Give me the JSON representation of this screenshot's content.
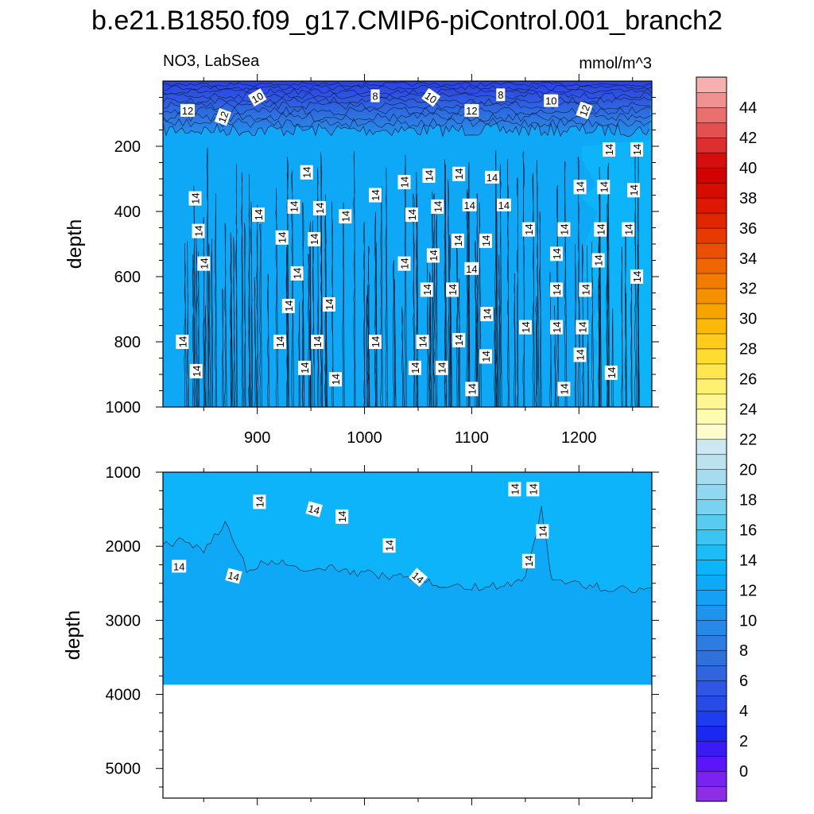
{
  "chart_data": {
    "type": "heatmap",
    "subtype": "filled-contour",
    "title": "b.e21.B1850.f09_g17.CMIP6-piControl.001_branch2",
    "variable_label": "NO3, LabSea",
    "units_label": "mmol/m^3",
    "panels": [
      {
        "name": "upper",
        "xlabel": "",
        "ylabel": "depth",
        "xlim": [
          812,
          1268
        ],
        "ylim": [
          0,
          1000
        ],
        "y_inverted": true,
        "x_ticks": [
          900,
          1000,
          1100,
          1200
        ],
        "x_tick_labels": [
          "900",
          "1000",
          "1100",
          "1200"
        ],
        "y_ticks": [
          200,
          400,
          600,
          800,
          1000
        ],
        "y_tick_labels": [
          "200",
          "400",
          "600",
          "800",
          "1000"
        ],
        "contour_labels": [
          {
            "text": "12",
            "x": 835,
            "depth": 90,
            "rot": 0
          },
          {
            "text": "12",
            "x": 868,
            "depth": 110,
            "rot": -70
          },
          {
            "text": "10",
            "x": 900,
            "depth": 50,
            "rot": -30
          },
          {
            "text": "8",
            "x": 1010,
            "depth": 45,
            "rot": 0
          },
          {
            "text": "10",
            "x": 1062,
            "depth": 50,
            "rot": 35
          },
          {
            "text": "12",
            "x": 1100,
            "depth": 90,
            "rot": 0
          },
          {
            "text": "8",
            "x": 1127,
            "depth": 42,
            "rot": 0
          },
          {
            "text": "10",
            "x": 1174,
            "depth": 60,
            "rot": 0
          },
          {
            "text": "12",
            "x": 1205,
            "depth": 90,
            "rot": -70
          },
          {
            "text": "14",
            "x": 842,
            "depth": 360,
            "rot": -90
          },
          {
            "text": "14",
            "x": 845,
            "depth": 460,
            "rot": -90
          },
          {
            "text": "14",
            "x": 850,
            "depth": 560,
            "rot": -90
          },
          {
            "text": "14",
            "x": 830,
            "depth": 800,
            "rot": -90
          },
          {
            "text": "14",
            "x": 843,
            "depth": 890,
            "rot": -90
          },
          {
            "text": "14",
            "x": 901,
            "depth": 410,
            "rot": -90
          },
          {
            "text": "14",
            "x": 923,
            "depth": 480,
            "rot": -90
          },
          {
            "text": "14",
            "x": 934,
            "depth": 385,
            "rot": -90
          },
          {
            "text": "14",
            "x": 946,
            "depth": 280,
            "rot": -90
          },
          {
            "text": "14",
            "x": 937,
            "depth": 590,
            "rot": -90
          },
          {
            "text": "14",
            "x": 929,
            "depth": 690,
            "rot": -90
          },
          {
            "text": "14",
            "x": 921,
            "depth": 800,
            "rot": -90
          },
          {
            "text": "14",
            "x": 944,
            "depth": 880,
            "rot": -90
          },
          {
            "text": "14",
            "x": 953,
            "depth": 485,
            "rot": -90
          },
          {
            "text": "14",
            "x": 958,
            "depth": 390,
            "rot": -90
          },
          {
            "text": "14",
            "x": 967,
            "depth": 685,
            "rot": -90
          },
          {
            "text": "14",
            "x": 956,
            "depth": 800,
            "rot": -90
          },
          {
            "text": "14",
            "x": 982,
            "depth": 415,
            "rot": -90
          },
          {
            "text": "14",
            "x": 973,
            "depth": 915,
            "rot": -90
          },
          {
            "text": "14",
            "x": 1010,
            "depth": 350,
            "rot": -90
          },
          {
            "text": "14",
            "x": 1010,
            "depth": 800,
            "rot": -90
          },
          {
            "text": "14",
            "x": 1037,
            "depth": 310,
            "rot": -90
          },
          {
            "text": "14",
            "x": 1037,
            "depth": 560,
            "rot": -90
          },
          {
            "text": "14",
            "x": 1044,
            "depth": 410,
            "rot": -90
          },
          {
            "text": "14",
            "x": 1060,
            "depth": 290,
            "rot": -90
          },
          {
            "text": "14",
            "x": 1054,
            "depth": 800,
            "rot": -90
          },
          {
            "text": "14",
            "x": 1058,
            "depth": 640,
            "rot": -90
          },
          {
            "text": "14",
            "x": 1047,
            "depth": 880,
            "rot": -90
          },
          {
            "text": "14",
            "x": 1064,
            "depth": 535,
            "rot": -90
          },
          {
            "text": "14",
            "x": 1068,
            "depth": 385,
            "rot": -90
          },
          {
            "text": "14",
            "x": 1072,
            "depth": 880,
            "rot": -90
          },
          {
            "text": "14",
            "x": 1082,
            "depth": 640,
            "rot": -90
          },
          {
            "text": "14",
            "x": 1087,
            "depth": 490,
            "rot": -90
          },
          {
            "text": "14",
            "x": 1088,
            "depth": 795,
            "rot": -90
          },
          {
            "text": "14",
            "x": 1088,
            "depth": 285,
            "rot": -90
          },
          {
            "text": "14",
            "x": 1098,
            "depth": 380,
            "rot": 0
          },
          {
            "text": "14",
            "x": 1100,
            "depth": 575,
            "rot": 0
          },
          {
            "text": "14",
            "x": 1100,
            "depth": 945,
            "rot": -90
          },
          {
            "text": "14",
            "x": 1113,
            "depth": 490,
            "rot": -90
          },
          {
            "text": "14",
            "x": 1114,
            "depth": 715,
            "rot": -90
          },
          {
            "text": "14",
            "x": 1113,
            "depth": 845,
            "rot": -90
          },
          {
            "text": "14",
            "x": 1119,
            "depth": 295,
            "rot": 0
          },
          {
            "text": "14",
            "x": 1130,
            "depth": 380,
            "rot": 0
          },
          {
            "text": "14",
            "x": 1153,
            "depth": 455,
            "rot": -90
          },
          {
            "text": "14",
            "x": 1150,
            "depth": 755,
            "rot": -90
          },
          {
            "text": "14",
            "x": 1179,
            "depth": 530,
            "rot": -90
          },
          {
            "text": "14",
            "x": 1179,
            "depth": 640,
            "rot": -90
          },
          {
            "text": "14",
            "x": 1179,
            "depth": 755,
            "rot": -90
          },
          {
            "text": "14",
            "x": 1186,
            "depth": 455,
            "rot": -90
          },
          {
            "text": "14",
            "x": 1186,
            "depth": 945,
            "rot": -90
          },
          {
            "text": "14",
            "x": 1201,
            "depth": 325,
            "rot": -90
          },
          {
            "text": "14",
            "x": 1201,
            "depth": 840,
            "rot": -90
          },
          {
            "text": "14",
            "x": 1203,
            "depth": 755,
            "rot": -90
          },
          {
            "text": "14",
            "x": 1206,
            "depth": 640,
            "rot": -90
          },
          {
            "text": "14",
            "x": 1218,
            "depth": 550,
            "rot": -90
          },
          {
            "text": "14",
            "x": 1220,
            "depth": 455,
            "rot": -90
          },
          {
            "text": "14",
            "x": 1223,
            "depth": 325,
            "rot": -90
          },
          {
            "text": "14",
            "x": 1230,
            "depth": 895,
            "rot": -90
          },
          {
            "text": "14",
            "x": 1228,
            "depth": 210,
            "rot": -90
          },
          {
            "text": "14",
            "x": 1246,
            "depth": 455,
            "rot": -90
          },
          {
            "text": "14",
            "x": 1251,
            "depth": 335,
            "rot": -90
          },
          {
            "text": "14",
            "x": 1254,
            "depth": 210,
            "rot": -90
          },
          {
            "text": "14",
            "x": 1254,
            "depth": 600,
            "rot": -90
          }
        ]
      },
      {
        "name": "lower",
        "xlabel": "",
        "ylabel": "depth",
        "xlim": [
          812,
          1268
        ],
        "ylim": [
          1000,
          5400
        ],
        "y_inverted": true,
        "valid_data_max_depth": 3870,
        "x_ticks": [
          900,
          1000,
          1100,
          1200
        ],
        "x_tick_labels": [],
        "y_ticks": [
          1000,
          2000,
          3000,
          4000,
          5000
        ],
        "y_tick_labels": [
          "1000",
          "2000",
          "3000",
          "4000",
          "5000"
        ],
        "contour_labels": [
          {
            "text": "14",
            "x": 827,
            "depth": 2270,
            "rot": 0
          },
          {
            "text": "14",
            "x": 902,
            "depth": 1400,
            "rot": -90
          },
          {
            "text": "14",
            "x": 878,
            "depth": 2400,
            "rot": 15
          },
          {
            "text": "14",
            "x": 953,
            "depth": 1500,
            "rot": 15
          },
          {
            "text": "14",
            "x": 979,
            "depth": 1600,
            "rot": -90
          },
          {
            "text": "14",
            "x": 1023,
            "depth": 1990,
            "rot": -90
          },
          {
            "text": "14",
            "x": 1050,
            "depth": 2420,
            "rot": 40
          },
          {
            "text": "14",
            "x": 1140,
            "depth": 1230,
            "rot": -90
          },
          {
            "text": "14",
            "x": 1157,
            "depth": 1230,
            "rot": -90
          },
          {
            "text": "14",
            "x": 1166,
            "depth": 1800,
            "rot": -90
          },
          {
            "text": "14",
            "x": 1153,
            "depth": 2200,
            "rot": -90
          }
        ]
      }
    ],
    "colorbar": {
      "levels": [
        -2,
        0,
        2,
        4,
        6,
        8,
        10,
        12,
        14,
        16,
        18,
        20,
        22,
        24,
        26,
        28,
        30,
        32,
        34,
        36,
        38,
        40,
        42,
        44,
        46
      ],
      "labels": [
        "0",
        "2",
        "4",
        "6",
        "8",
        "10",
        "12",
        "14",
        "16",
        "18",
        "20",
        "22",
        "24",
        "26",
        "28",
        "30",
        "32",
        "34",
        "36",
        "38",
        "40",
        "42",
        "44"
      ],
      "colors": [
        "#8c2ee6",
        "#7a22f2",
        "#5a16f8",
        "#3b1af8",
        "#1a28f0",
        "#1e3cf0",
        "#2a4ae8",
        "#2e56e2",
        "#3264de",
        "#3070dc",
        "#2c7ce2",
        "#2888e8",
        "#1e94ee",
        "#14a0f4",
        "#0eaaf8",
        "#0cb4fa",
        "#1ebcf6",
        "#3ac4f2",
        "#58ccf0",
        "#78d2f0",
        "#90d8f2",
        "#a6dcf0",
        "#bce2f0",
        "#cce8f2",
        "#fcfccc",
        "#fefcb0",
        "#fef692",
        "#fef070",
        "#fee64e",
        "#fedc30",
        "#fccc18",
        "#fab808",
        "#f8a400",
        "#f69000",
        "#f27c00",
        "#ee6600",
        "#ea5000",
        "#e63a00",
        "#e22400",
        "#de1800",
        "#d60c00",
        "#d40000",
        "#d80e0e",
        "#de2e2e",
        "#e45050",
        "#ea7070",
        "#f09090",
        "#f6b0b0"
      ]
    }
  }
}
